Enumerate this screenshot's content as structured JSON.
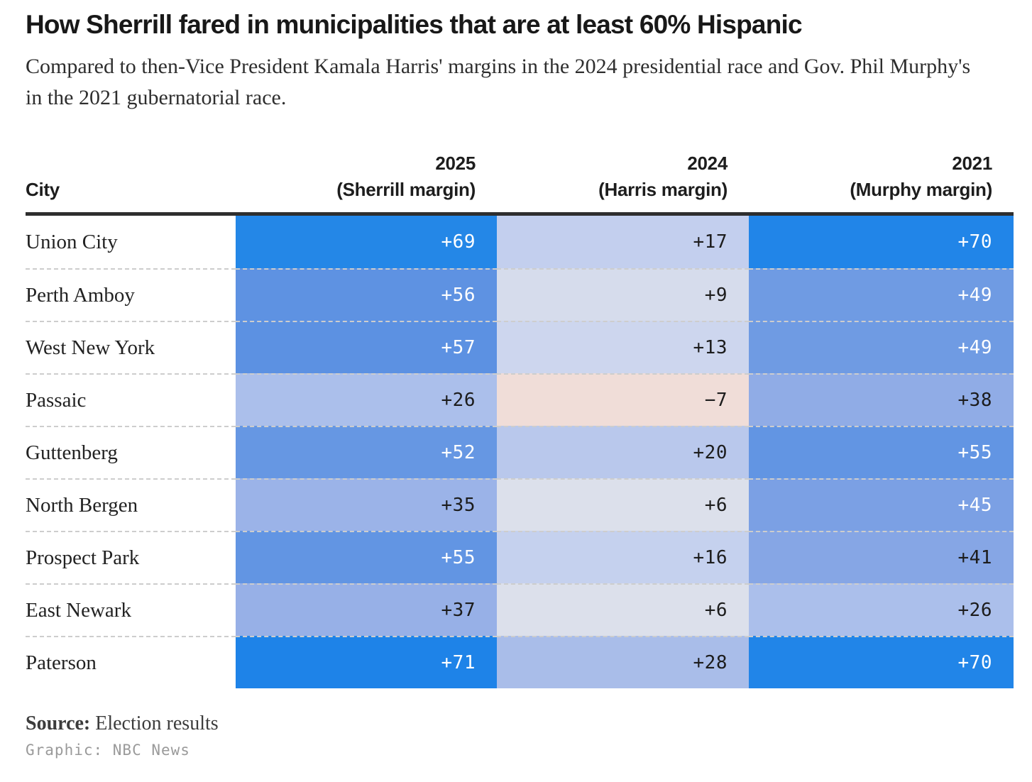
{
  "header": {
    "title": "How Sherrill fared in municipalities that are at least 60% Hispanic",
    "subtitle": "Compared to then-Vice President Kamala Harris' margins in the 2024 presidential race and Gov. Phil Murphy's in the 2021 gubernatorial race."
  },
  "table": {
    "columns": [
      {
        "line1": "",
        "line2": "City"
      },
      {
        "line1": "2025",
        "line2": "(Sherrill margin)"
      },
      {
        "line1": "2024",
        "line2": "(Harris margin)"
      },
      {
        "line1": "2021",
        "line2": "(Murphy margin)"
      }
    ],
    "rows": [
      {
        "city": "Union City",
        "sherrill": {
          "label": "+69",
          "value": 69,
          "bg": "#2487e7",
          "fg": "#ffffff"
        },
        "harris": {
          "label": "+17",
          "value": 17,
          "bg": "#c3cfee",
          "fg": "#1c1c1c"
        },
        "murphy": {
          "label": "+70",
          "value": 70,
          "bg": "#2185e8",
          "fg": "#ffffff"
        }
      },
      {
        "city": "Perth Amboy",
        "sherrill": {
          "label": "+56",
          "value": 56,
          "bg": "#5e92e2",
          "fg": "#ffffff"
        },
        "harris": {
          "label": "+9",
          "value": 9,
          "bg": "#d6dcec",
          "fg": "#1c1c1c"
        },
        "murphy": {
          "label": "+49",
          "value": 49,
          "bg": "#6f9be3",
          "fg": "#ffffff"
        }
      },
      {
        "city": "West New York",
        "sherrill": {
          "label": "+57",
          "value": 57,
          "bg": "#5c91e2",
          "fg": "#ffffff"
        },
        "harris": {
          "label": "+13",
          "value": 13,
          "bg": "#cdd6ee",
          "fg": "#1c1c1c"
        },
        "murphy": {
          "label": "+49",
          "value": 49,
          "bg": "#6f9be3",
          "fg": "#ffffff"
        }
      },
      {
        "city": "Passaic",
        "sherrill": {
          "label": "+26",
          "value": 26,
          "bg": "#abbfeb",
          "fg": "#1c1c1c"
        },
        "harris": {
          "label": "−7",
          "value": -7,
          "bg": "#f0ddd8",
          "fg": "#1c1c1c"
        },
        "murphy": {
          "label": "+38",
          "value": 38,
          "bg": "#90ace6",
          "fg": "#1c1c1c"
        }
      },
      {
        "city": "Guttenberg",
        "sherrill": {
          "label": "+52",
          "value": 52,
          "bg": "#6697e3",
          "fg": "#ffffff"
        },
        "harris": {
          "label": "+20",
          "value": 20,
          "bg": "#b9c8ec",
          "fg": "#1c1c1c"
        },
        "murphy": {
          "label": "+55",
          "value": 55,
          "bg": "#6295e3",
          "fg": "#ffffff"
        }
      },
      {
        "city": "North Bergen",
        "sherrill": {
          "label": "+35",
          "value": 35,
          "bg": "#9bb3e8",
          "fg": "#1c1c1c"
        },
        "harris": {
          "label": "+6",
          "value": 6,
          "bg": "#dce0eb",
          "fg": "#1c1c1c"
        },
        "murphy": {
          "label": "+45",
          "value": 45,
          "bg": "#7ba0e4",
          "fg": "#ffffff"
        }
      },
      {
        "city": "Prospect Park",
        "sherrill": {
          "label": "+55",
          "value": 55,
          "bg": "#6295e3",
          "fg": "#ffffff"
        },
        "harris": {
          "label": "+16",
          "value": 16,
          "bg": "#c5d1ee",
          "fg": "#1c1c1c"
        },
        "murphy": {
          "label": "+41",
          "value": 41,
          "bg": "#86a6e5",
          "fg": "#1c1c1c"
        }
      },
      {
        "city": "East Newark",
        "sherrill": {
          "label": "+37",
          "value": 37,
          "bg": "#97b0e7",
          "fg": "#1c1c1c"
        },
        "harris": {
          "label": "+6",
          "value": 6,
          "bg": "#dce0eb",
          "fg": "#1c1c1c"
        },
        "murphy": {
          "label": "+26",
          "value": 26,
          "bg": "#abbfeb",
          "fg": "#1c1c1c"
        }
      },
      {
        "city": "Paterson",
        "sherrill": {
          "label": "+71",
          "value": 71,
          "bg": "#1e83e8",
          "fg": "#ffffff"
        },
        "harris": {
          "label": "+28",
          "value": 28,
          "bg": "#a9bde9",
          "fg": "#1c1c1c"
        },
        "murphy": {
          "label": "+70",
          "value": 70,
          "bg": "#2185e8",
          "fg": "#ffffff"
        }
      }
    ]
  },
  "footer": {
    "source_label": "Source:",
    "source_value": "Election results",
    "credit": "Graphic: NBC News"
  },
  "colors": {
    "strong_positive": "#1e83e8",
    "weak_positive": "#dce0eb",
    "negative": "#f0ddd8",
    "rule": "#2e2e2e",
    "dashed_divider": "#cdcdcd",
    "credit_gray": "#9a9a9a"
  },
  "chart_data": {
    "type": "heatmap",
    "title": "How Sherrill fared in municipalities that are at least 60% Hispanic",
    "subtitle": "Compared to then-Vice President Kamala Harris' margins in the 2024 presidential race and Gov. Phil Murphy's in the 2021 gubernatorial race.",
    "categories": [
      "Union City",
      "Perth Amboy",
      "West New York",
      "Passaic",
      "Guttenberg",
      "North Bergen",
      "Prospect Park",
      "East Newark",
      "Paterson"
    ],
    "series": [
      {
        "name": "2025 (Sherrill margin)",
        "values": [
          69,
          56,
          57,
          26,
          52,
          35,
          55,
          37,
          71
        ]
      },
      {
        "name": "2024 (Harris margin)",
        "values": [
          17,
          9,
          13,
          -7,
          20,
          6,
          16,
          6,
          28
        ]
      },
      {
        "name": "2021 (Murphy margin)",
        "values": [
          70,
          49,
          49,
          38,
          55,
          45,
          41,
          26,
          70
        ]
      }
    ],
    "value_format": "signed margin, percentage points",
    "color_scale": {
      "negative": "#f0ddd8",
      "near_zero": "#dce0eb",
      "max_positive": "#1e83e8"
    },
    "legend_position": "none",
    "grid": "dashed row dividers",
    "source": "Election results",
    "credit": "Graphic: NBC News"
  }
}
